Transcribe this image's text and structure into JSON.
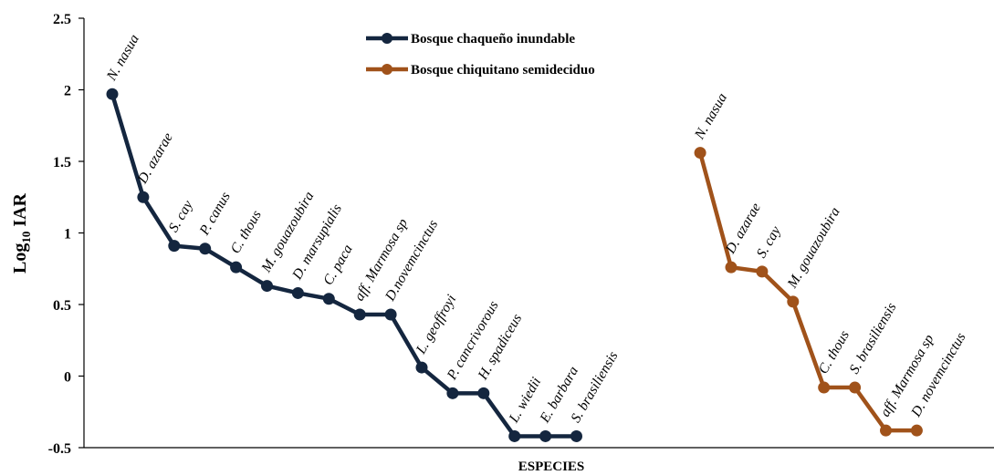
{
  "chart_data": {
    "type": "line",
    "title": "",
    "xlabel": "ESPECIES",
    "ylabel_main": "Log",
    "ylabel_sub": "10",
    "ylabel_rest": " IAR",
    "ylim": [
      -0.5,
      2.5
    ],
    "yticks": [
      -0.5,
      0,
      0.5,
      1,
      1.5,
      2,
      2.5
    ],
    "ytick_labels": [
      "-0.5",
      "0",
      "0.5",
      "1",
      "1.5",
      "2",
      "2.5"
    ],
    "legend_position": "top-center",
    "series": [
      {
        "name": "Bosque chaqueño inundable",
        "color": "#14263f",
        "points": [
          {
            "label": "N. nasua",
            "y": 1.97
          },
          {
            "label": "D. azarae",
            "y": 1.25
          },
          {
            "label": "S. cay",
            "y": 0.91
          },
          {
            "label": "P. canus",
            "y": 0.89
          },
          {
            "label": "C. thous",
            "y": 0.76
          },
          {
            "label": "M. gouazoubira",
            "y": 0.63
          },
          {
            "label": "D. marsupialis",
            "y": 0.58
          },
          {
            "label": "C. paca",
            "y": 0.54
          },
          {
            "label": "aff. Marmosa sp",
            "y": 0.43
          },
          {
            "label": "D.novemcinctus",
            "y": 0.43
          },
          {
            "label": "L. geoffroyi",
            "y": 0.06
          },
          {
            "label": "P. cancrivorous",
            "y": -0.12
          },
          {
            "label": "H. spadiceus",
            "y": -0.12
          },
          {
            "label": "L. wiedii",
            "y": -0.42
          },
          {
            "label": "E. barbara",
            "y": -0.42
          },
          {
            "label": "S. brasiliensis",
            "y": -0.42
          }
        ]
      },
      {
        "name": "Bosque chiquitano semideciduo",
        "color": "#a0521a",
        "points": [
          {
            "label": "N. nasua",
            "y": 1.56
          },
          {
            "label": "D. azarae",
            "y": 0.76
          },
          {
            "label": "S. cay",
            "y": 0.73
          },
          {
            "label": "M. gouazoubira",
            "y": 0.52
          },
          {
            "label": "C. thous",
            "y": -0.08
          },
          {
            "label": "S. brasiliensis",
            "y": -0.08
          },
          {
            "label": "aff. Marmosa sp",
            "y": -0.38
          },
          {
            "label": "D. novemcinctus",
            "y": -0.38
          }
        ]
      }
    ]
  }
}
